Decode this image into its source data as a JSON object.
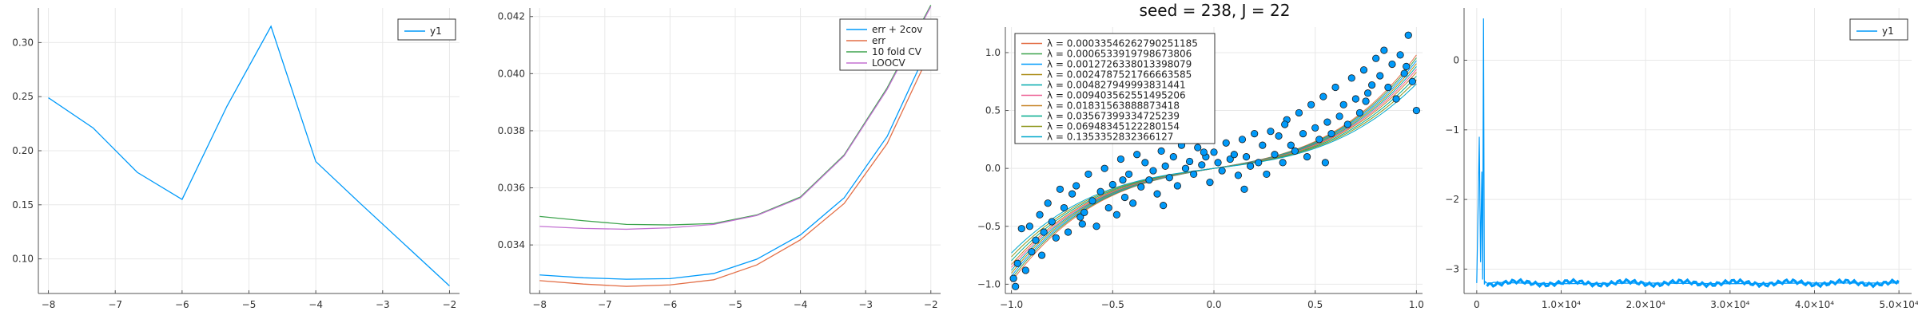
{
  "chart_data": [
    {
      "type": "line",
      "title": "",
      "xlabel": "",
      "ylabel": "",
      "xlim": [
        -8.15,
        -1.85
      ],
      "ylim": [
        0.068,
        0.332
      ],
      "xticks": [
        -8,
        -7,
        -6,
        -5,
        -4,
        -3,
        -2
      ],
      "yticks": [
        0.1,
        0.15,
        0.2,
        0.25,
        0.3
      ],
      "xtick_labels": [
        "−8",
        "−7",
        "−6",
        "−5",
        "−4",
        "−3",
        "−2"
      ],
      "ytick_labels": [
        "0.10",
        "0.15",
        "0.20",
        "0.25",
        "0.30"
      ],
      "grid": true,
      "legend": "top-right",
      "series": [
        {
          "name": "y1",
          "color": "#009AFA",
          "x": [
            -8,
            -7.33,
            -6.67,
            -6,
            -5.33,
            -4.67,
            -4,
            -3.33,
            -2
          ],
          "y": [
            0.249,
            0.221,
            0.18,
            0.155,
            0.241,
            0.315,
            0.19,
            0.151,
            0.075
          ]
        }
      ]
    },
    {
      "type": "line",
      "title": "",
      "xlabel": "",
      "ylabel": "",
      "xlim": [
        -8.15,
        -1.85
      ],
      "ylim": [
        0.0323,
        0.0423
      ],
      "xticks": [
        -8,
        -7,
        -6,
        -5,
        -4,
        -3,
        -2
      ],
      "yticks": [
        0.034,
        0.036,
        0.038,
        0.04,
        0.042
      ],
      "xtick_labels": [
        "−8",
        "−7",
        "−6",
        "−5",
        "−4",
        "−3",
        "−2"
      ],
      "ytick_labels": [
        "0.034",
        "0.036",
        "0.038",
        "0.040",
        "0.042"
      ],
      "grid": true,
      "legend": "top-right",
      "x": [
        -8,
        -7.33,
        -6.67,
        -6,
        -5.33,
        -4.67,
        -4,
        -3.33,
        -2.67,
        -2
      ],
      "series": [
        {
          "name": "err + 2cov",
          "color": "#009AFA",
          "y": [
            0.03295,
            0.03285,
            0.0328,
            0.03282,
            0.033,
            0.0335,
            0.03435,
            0.03565,
            0.0378,
            0.0411
          ]
        },
        {
          "name": "err",
          "color": "#E36F47",
          "y": [
            0.03275,
            0.03263,
            0.03255,
            0.0326,
            0.03278,
            0.0333,
            0.03418,
            0.03545,
            0.03755,
            0.0408
          ]
        },
        {
          "name": "10 fold CV",
          "color": "#3EA44E",
          "y": [
            0.035,
            0.03485,
            0.03472,
            0.0347,
            0.03475,
            0.03505,
            0.03568,
            0.03715,
            0.0395,
            0.0424
          ]
        },
        {
          "name": "LOOCV",
          "color": "#C371D2",
          "y": [
            0.03465,
            0.03458,
            0.03455,
            0.0346,
            0.03472,
            0.03503,
            0.03565,
            0.03712,
            0.03945,
            0.04235
          ]
        }
      ]
    },
    {
      "type": "scatter",
      "title": "seed = 238, J = 22",
      "xlabel": "",
      "ylabel": "",
      "xlim": [
        -1.03,
        1.03
      ],
      "ylim": [
        -1.08,
        1.22
      ],
      "xticks": [
        -1.0,
        -0.5,
        0.0,
        0.5,
        1.0
      ],
      "yticks": [
        -1.0,
        -0.5,
        0.0,
        0.5,
        1.0
      ],
      "xtick_labels": [
        "−1.0",
        "−0.5",
        "0.0",
        "0.5",
        "1.0"
      ],
      "ytick_labels": [
        "−1.0",
        "−0.5",
        "0.0",
        "0.5",
        "1.0"
      ],
      "grid": true,
      "legend": "top-left",
      "points": {
        "color": "#009AFA",
        "x": [
          -0.99,
          -0.98,
          -0.97,
          -0.95,
          -0.93,
          -0.91,
          -0.9,
          -0.88,
          -0.86,
          -0.84,
          -0.82,
          -0.8,
          -0.78,
          -0.76,
          -0.74,
          -0.72,
          -0.7,
          -0.68,
          -0.66,
          -0.64,
          -0.62,
          -0.6,
          -0.58,
          -0.56,
          -0.54,
          -0.52,
          -0.5,
          -0.48,
          -0.46,
          -0.44,
          -0.42,
          -0.4,
          -0.38,
          -0.36,
          -0.34,
          -0.32,
          -0.3,
          -0.28,
          -0.26,
          -0.24,
          -0.22,
          -0.2,
          -0.18,
          -0.16,
          -0.14,
          -0.12,
          -0.1,
          -0.08,
          -0.06,
          -0.04,
          -0.02,
          0.0,
          0.02,
          0.04,
          0.06,
          0.08,
          0.1,
          0.12,
          0.14,
          0.16,
          0.18,
          0.2,
          0.22,
          0.24,
          0.26,
          0.28,
          0.3,
          0.32,
          0.34,
          0.36,
          0.38,
          0.4,
          0.42,
          0.44,
          0.46,
          0.48,
          0.5,
          0.52,
          0.54,
          0.56,
          0.58,
          0.6,
          0.62,
          0.64,
          0.66,
          0.68,
          0.7,
          0.72,
          0.74,
          0.76,
          0.78,
          0.8,
          0.82,
          0.84,
          0.86,
          0.88,
          0.9,
          0.92,
          0.94,
          0.96,
          0.98,
          1.0,
          -0.85,
          -0.65,
          -0.45,
          -0.25,
          -0.05,
          0.15,
          0.35,
          0.55,
          0.75,
          0.95
        ],
        "y": [
          -0.95,
          -1.02,
          -0.82,
          -0.52,
          -0.88,
          -0.5,
          -0.72,
          -0.62,
          -0.4,
          -0.55,
          -0.3,
          -0.46,
          -0.6,
          -0.18,
          -0.34,
          -0.55,
          -0.22,
          -0.15,
          -0.42,
          -0.38,
          -0.05,
          -0.28,
          -0.5,
          -0.2,
          0.0,
          -0.34,
          -0.14,
          -0.4,
          0.08,
          -0.25,
          -0.05,
          -0.3,
          0.12,
          -0.16,
          0.05,
          -0.1,
          -0.02,
          -0.22,
          0.15,
          0.02,
          -0.08,
          0.1,
          -0.15,
          0.2,
          0.0,
          0.06,
          -0.05,
          0.18,
          0.03,
          0.1,
          -0.12,
          0.14,
          0.05,
          -0.02,
          0.22,
          0.08,
          0.12,
          -0.06,
          0.25,
          0.1,
          0.02,
          0.3,
          0.05,
          0.2,
          -0.05,
          0.32,
          0.12,
          0.28,
          0.05,
          0.42,
          0.2,
          0.15,
          0.48,
          0.3,
          0.1,
          0.55,
          0.35,
          0.25,
          0.62,
          0.4,
          0.3,
          0.7,
          0.45,
          0.55,
          0.38,
          0.78,
          0.6,
          0.48,
          0.85,
          0.65,
          0.72,
          0.95,
          0.8,
          1.02,
          0.7,
          0.9,
          0.6,
          0.98,
          0.82,
          1.15,
          0.75,
          0.5,
          -0.75,
          -0.48,
          -0.1,
          -0.32,
          0.14,
          -0.18,
          0.38,
          0.05,
          0.58,
          0.88
        ]
      },
      "fit_coefficients_cubic": [
        0.0,
        0.25,
        0.0,
        0.58
      ],
      "series": [
        {
          "name": "λ = 0.00033546262790251185",
          "color": "#E36F47",
          "scale": 1.18
        },
        {
          "name": "λ = 0.0006533919798673806",
          "color": "#3EA44E",
          "scale": 1.15
        },
        {
          "name": "λ = 0.0012726338013398079",
          "color": "#009AFA",
          "scale": 1.12
        },
        {
          "name": "λ = 0.0024787521766663585",
          "color": "#AC8D18",
          "scale": 1.09
        },
        {
          "name": "λ = 0.004827949993831441",
          "color": "#00A9AD",
          "scale": 1.06
        },
        {
          "name": "λ = 0.009403562551495206",
          "color": "#ED5D92",
          "scale": 1.03
        },
        {
          "name": "λ = 0.01831563888873418",
          "color": "#C68225",
          "scale": 1.0
        },
        {
          "name": "λ = 0.03567399334725239",
          "color": "#00A98D",
          "scale": 0.96
        },
        {
          "name": "λ = 0.06948345122280154",
          "color": "#8E971D",
          "scale": 0.92
        },
        {
          "name": "λ = 0.1353352832366127",
          "color": "#00A8CB",
          "scale": 0.88
        }
      ]
    },
    {
      "type": "line",
      "title": "",
      "xlabel": "",
      "ylabel": "",
      "xlim": [
        -1500,
        51500
      ],
      "ylim": [
        -3.35,
        0.75
      ],
      "xticks": [
        0,
        10000,
        20000,
        30000,
        40000,
        50000
      ],
      "yticks": [
        -3,
        -2,
        -1,
        0
      ],
      "xtick_labels": [
        "0",
        "1.0×10⁴",
        "2.0×10⁴",
        "3.0×10⁴",
        "4.0×10⁴",
        "5.0×10⁴"
      ],
      "ytick_labels": [
        "−3",
        "−2",
        "−1",
        "0"
      ],
      "grid": true,
      "legend": "top-right",
      "series": [
        {
          "name": "y1",
          "color": "#009AFA",
          "description_points_x": [
            0,
            150,
            300,
            450,
            600,
            700,
            800,
            900,
            1000,
            1200,
            1500,
            2000,
            5000,
            10000,
            20000,
            30000,
            40000,
            50000
          ],
          "description_points_y": [
            -3.2,
            -2.2,
            -1.1,
            -2.9,
            -1.6,
            -3.15,
            0.6,
            -3.22,
            -3.18,
            -3.2,
            -3.21,
            -3.19,
            -3.2,
            -3.21,
            -3.2,
            -3.21,
            -3.2,
            -3.2
          ]
        }
      ]
    }
  ]
}
